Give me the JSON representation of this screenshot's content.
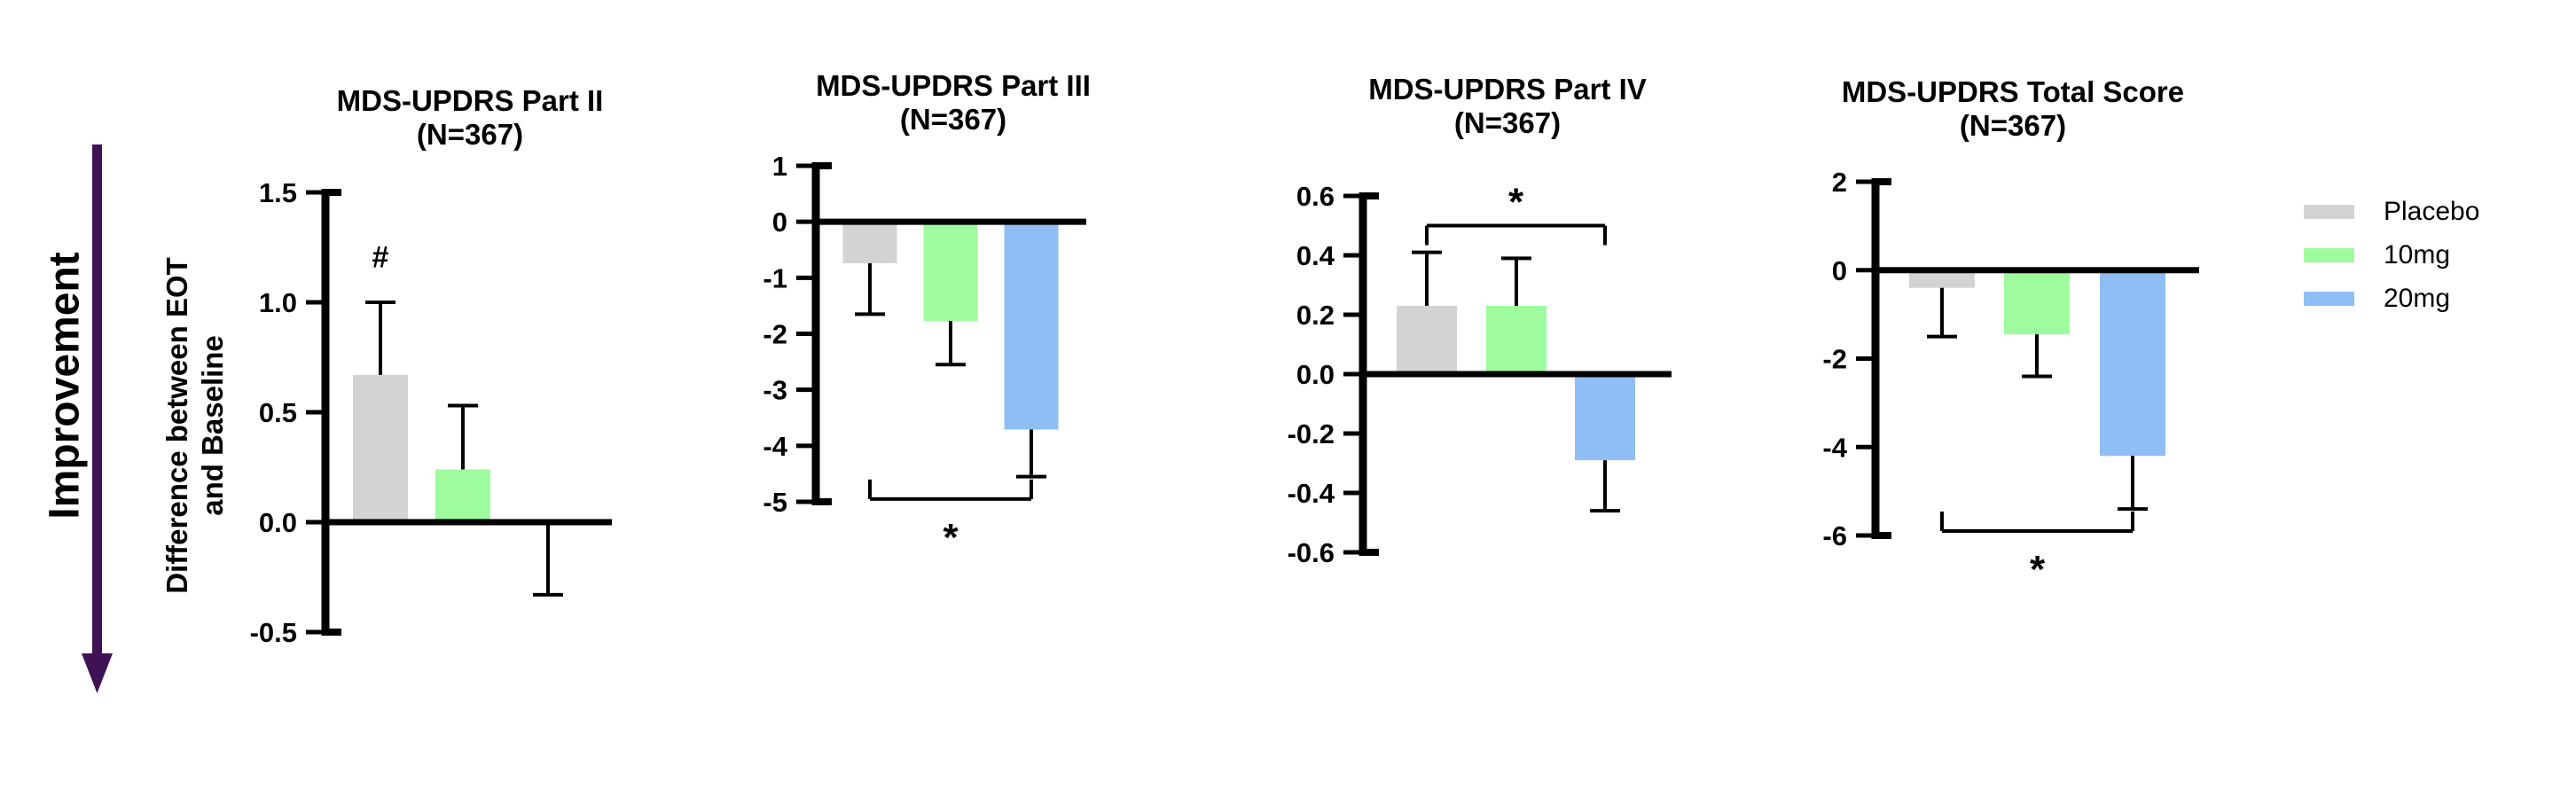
{
  "figure": {
    "improvement_label": "Improvement",
    "y_axis_label_line1": "Difference between EOT",
    "y_axis_label_line2": "and Baseline",
    "arrow_color": "#3E1254",
    "axis_color": "#000000",
    "background": "#FFFFFF"
  },
  "legend": {
    "items": [
      {
        "label": "Placebo",
        "color": "#D3D3D3"
      },
      {
        "label": "10mg",
        "color": "#9EFB9E"
      },
      {
        "label": "20mg",
        "color": "#8FBEF5"
      }
    ]
  },
  "chart_data": [
    {
      "type": "bar",
      "title": "MDS-UPDRS Part II",
      "subtitle": "(N=367)",
      "categories": [
        "Placebo",
        "10mg",
        "20mg"
      ],
      "values": [
        0.67,
        0.24,
        0.0
      ],
      "error_to": [
        1.0,
        0.53,
        -0.33
      ],
      "ylim": [
        -0.5,
        1.5
      ],
      "ytick_step": 0.5,
      "yticks": [
        "1.5",
        "1.0",
        "0.5",
        "0.0",
        "-0.5"
      ],
      "ylabel": "Difference between EOT and Baseline",
      "grid": false,
      "annotations": [
        {
          "type": "symbol",
          "symbol": "#",
          "bar": 0,
          "y": 1.16
        }
      ]
    },
    {
      "type": "bar",
      "title": "MDS-UPDRS Part III",
      "subtitle": "(N=367)",
      "categories": [
        "Placebo",
        "10mg",
        "20mg"
      ],
      "values": [
        -0.74,
        -1.77,
        -3.71
      ],
      "error_to": [
        -1.65,
        -2.55,
        -4.55
      ],
      "ylim": [
        -5,
        1
      ],
      "ytick_step": 1,
      "yticks": [
        "1",
        "0",
        "-1",
        "-2",
        "-3",
        "-4",
        "-5"
      ],
      "grid": false,
      "annotations": [
        {
          "type": "bracket",
          "symbol": "*",
          "from_bar": 0,
          "to_bar": 2,
          "y": -4.95,
          "side": "below"
        }
      ]
    },
    {
      "type": "bar",
      "title": "MDS-UPDRS Part IV",
      "subtitle": "(N=367)",
      "categories": [
        "Placebo",
        "10mg",
        "20mg"
      ],
      "values": [
        0.23,
        0.23,
        -0.29
      ],
      "error_to": [
        0.41,
        0.39,
        -0.46
      ],
      "ylim": [
        -0.6,
        0.6
      ],
      "ytick_step": 0.2,
      "yticks": [
        "0.6",
        "0.4",
        "0.2",
        "0.0",
        "-0.2",
        "-0.4",
        "-0.6"
      ],
      "grid": false,
      "annotations": [
        {
          "type": "bracket",
          "symbol": "*",
          "from_bar": 0,
          "to_bar": 2,
          "y": 0.5,
          "side": "above"
        }
      ]
    },
    {
      "type": "bar",
      "title": "MDS-UPDRS Total Score",
      "subtitle": "(N=367)",
      "categories": [
        "Placebo",
        "10mg",
        "20mg"
      ],
      "values": [
        -0.4,
        -1.45,
        -4.2
      ],
      "error_to": [
        -1.5,
        -2.4,
        -5.4
      ],
      "ylim": [
        -6,
        2
      ],
      "ytick_step": 2,
      "yticks": [
        "2",
        "0",
        "-2",
        "-4",
        "-6"
      ],
      "grid": false,
      "annotations": [
        {
          "type": "bracket",
          "symbol": "*",
          "from_bar": 0,
          "to_bar": 2,
          "y": -5.9,
          "side": "below"
        }
      ]
    }
  ]
}
